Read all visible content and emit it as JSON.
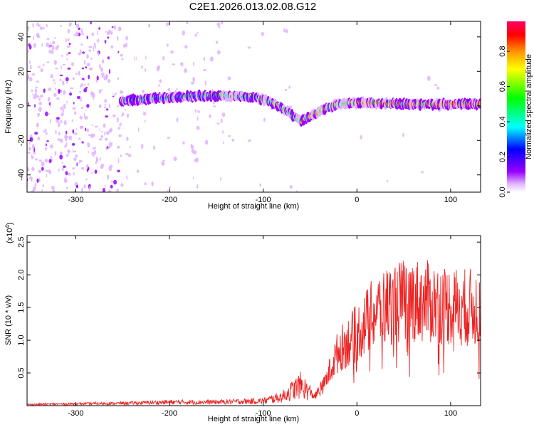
{
  "title": "C2E1.2026.013.02.08.G12",
  "chart_data": [
    {
      "type": "heatmap",
      "name": "spectrogram",
      "xlabel": "Height of straight line (km)",
      "ylabel": "Frequency (Hz)",
      "xlim": [
        -352,
        132
      ],
      "ylim": [
        -50,
        49
      ],
      "xticks": [
        -300,
        -200,
        -100,
        0,
        100
      ],
      "yticks": [
        -40,
        -20,
        0,
        20,
        40
      ],
      "colorbar": {
        "label": "Normalized spectral amplitude",
        "range": [
          0,
          0.97
        ],
        "ticks": [
          0.0,
          0.2,
          0.4,
          0.6,
          0.8
        ],
        "colors": [
          "#ffffff",
          "#e0b3ff",
          "#9900ff",
          "#0000ff",
          "#00ffff",
          "#00ff00",
          "#ffff00",
          "#ff9900",
          "#ff0000",
          "#ff0066"
        ]
      },
      "ridge": [
        {
          "x": -250,
          "f": 3
        },
        {
          "x": -200,
          "f": 5
        },
        {
          "x": -150,
          "f": 6
        },
        {
          "x": -110,
          "f": 5
        },
        {
          "x": -90,
          "f": 2
        },
        {
          "x": -75,
          "f": -3
        },
        {
          "x": -60,
          "f": -9
        },
        {
          "x": -50,
          "f": -6
        },
        {
          "x": -40,
          "f": -3
        },
        {
          "x": -20,
          "f": 1
        },
        {
          "x": 0,
          "f": 2
        },
        {
          "x": 50,
          "f": 1
        },
        {
          "x": 100,
          "f": 1
        },
        {
          "x": 130,
          "f": 1
        }
      ]
    },
    {
      "type": "line",
      "name": "snr",
      "xlabel": "Height of straight line (km)",
      "ylabel": "SNR (10 * v/v)",
      "yscale_label": "(x10",
      "yscale_exp": "4",
      "yscale_close": ")",
      "xlim": [
        -352,
        132
      ],
      "ylim": [
        0,
        2.6
      ],
      "xticks": [
        -300,
        -200,
        -100,
        0,
        100
      ],
      "yticks": [
        0.5,
        1.0,
        1.5,
        2.0,
        2.5
      ],
      "color": "#ee2222",
      "envelope": [
        {
          "x": -352,
          "y": 0.02
        },
        {
          "x": -250,
          "y": 0.04
        },
        {
          "x": -200,
          "y": 0.06
        },
        {
          "x": -150,
          "y": 0.06
        },
        {
          "x": -100,
          "y": 0.08
        },
        {
          "x": -80,
          "y": 0.15
        },
        {
          "x": -60,
          "y": 0.35
        },
        {
          "x": -45,
          "y": 0.15
        },
        {
          "x": -35,
          "y": 0.35
        },
        {
          "x": -20,
          "y": 0.9
        },
        {
          "x": 0,
          "y": 1.2
        },
        {
          "x": 20,
          "y": 1.55
        },
        {
          "x": 40,
          "y": 1.7
        },
        {
          "x": 60,
          "y": 1.75
        },
        {
          "x": 80,
          "y": 1.7
        },
        {
          "x": 100,
          "y": 1.65
        },
        {
          "x": 132,
          "y": 1.6
        }
      ]
    }
  ]
}
